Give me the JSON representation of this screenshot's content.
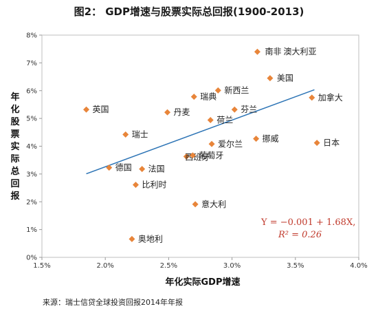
{
  "chart_data": {
    "type": "scatter",
    "title": "图2： GDP增速与股票实际总回报(1900-2013)",
    "xlabel": "年化实际GDP增速",
    "ylabel": "年化股票实际总回报",
    "xlim": [
      0.015,
      0.04
    ],
    "ylim": [
      0,
      0.08
    ],
    "x_ticks": [
      "1.5%",
      "2.0%",
      "2.5%",
      "3.0%",
      "3.5%",
      "4.0%"
    ],
    "y_ticks": [
      "0%",
      "1%",
      "2%",
      "3%",
      "4%",
      "5%",
      "6%",
      "7%",
      "8%"
    ],
    "marker_color": "#e8853a",
    "trendline_color": "#2e75b6",
    "trendline": {
      "intercept": -0.001,
      "slope": 1.68,
      "x_range": [
        0.0185,
        0.0365
      ]
    },
    "equation": "Y = −0.001 + 1.68X,",
    "r_squared": "R² = 0.26",
    "points": [
      {
        "label": "南非",
        "x": 0.032,
        "y": 0.074
      },
      {
        "label": "澳大利亚",
        "x": 0.032,
        "y": 0.074
      },
      {
        "label": "美国",
        "x": 0.033,
        "y": 0.0645
      },
      {
        "label": "加拿大",
        "x": 0.0363,
        "y": 0.0575
      },
      {
        "label": "新西兰",
        "x": 0.0289,
        "y": 0.0601
      },
      {
        "label": "瑞典",
        "x": 0.027,
        "y": 0.0578
      },
      {
        "label": "芬兰",
        "x": 0.0302,
        "y": 0.0532
      },
      {
        "label": "英国",
        "x": 0.0185,
        "y": 0.0532
      },
      {
        "label": "丹麦",
        "x": 0.0249,
        "y": 0.0522
      },
      {
        "label": "荷兰",
        "x": 0.0283,
        "y": 0.0494
      },
      {
        "label": "瑞士",
        "x": 0.0216,
        "y": 0.0442
      },
      {
        "label": "挪威",
        "x": 0.0319,
        "y": 0.0427
      },
      {
        "label": "日本",
        "x": 0.0367,
        "y": 0.0412
      },
      {
        "label": "爱尔兰",
        "x": 0.0284,
        "y": 0.0408
      },
      {
        "label": "西班牙",
        "x": 0.0264,
        "y": 0.0363
      },
      {
        "label": "葡萄牙",
        "x": 0.0269,
        "y": 0.0367
      },
      {
        "label": "德国",
        "x": 0.0203,
        "y": 0.0323
      },
      {
        "label": "法国",
        "x": 0.0229,
        "y": 0.0318
      },
      {
        "label": "比利时",
        "x": 0.0224,
        "y": 0.0261
      },
      {
        "label": "意大利",
        "x": 0.0271,
        "y": 0.0191
      },
      {
        "label": "奥地利",
        "x": 0.0221,
        "y": 0.0066
      }
    ]
  },
  "source_note": "来源：瑞士信贷全球投资回报2014年年报"
}
